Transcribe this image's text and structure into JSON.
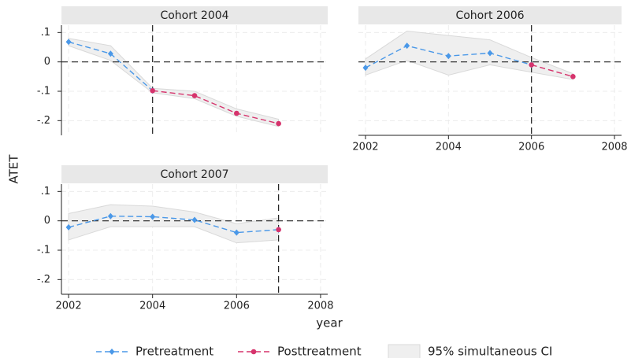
{
  "chart_data": [
    {
      "type": "line",
      "title": "Cohort 2004",
      "ylabel": "ATET",
      "x": [
        2002,
        2003,
        2004,
        2005,
        2006,
        2007
      ],
      "series": [
        {
          "name": "Pretreatment",
          "color": "#4a98e8",
          "marker": "diamond",
          "values": [
            0.068,
            0.028,
            -0.098,
            null,
            null,
            null
          ]
        },
        {
          "name": "Posttreatment",
          "color": "#d6336c",
          "marker": "circle",
          "values": [
            null,
            null,
            -0.098,
            -0.115,
            -0.175,
            -0.21
          ]
        }
      ],
      "band": {
        "name": "95% simultaneous CI",
        "color": "#efefef",
        "lower": [
          0.055,
          0.005,
          -0.105,
          -0.125,
          -0.185,
          -0.22
        ],
        "upper": [
          0.08,
          0.055,
          -0.09,
          -0.1,
          -0.16,
          -0.195
        ]
      },
      "hline": 0,
      "vline": 2004,
      "xlim": [
        2001.83,
        2008.17
      ],
      "ylim": [
        -0.25,
        0.125
      ],
      "xticks": [
        2002,
        2004,
        2006,
        2008
      ],
      "yticks": [
        {
          "value": 0.1,
          "label": ".1"
        },
        0,
        {
          "value": -0.1,
          "label": "-.1"
        },
        {
          "value": -0.2,
          "label": "-.2"
        }
      ],
      "x_tick_labels": false,
      "y_tick_labels": true,
      "grid": true
    },
    {
      "type": "line",
      "title": "Cohort 2006",
      "x": [
        2002,
        2003,
        2004,
        2005,
        2006,
        2007
      ],
      "series": [
        {
          "color": "#4a98e8",
          "marker": "diamond",
          "values": [
            -0.02,
            0.055,
            0.02,
            0.03,
            -0.01,
            null
          ]
        },
        {
          "color": "#d6336c",
          "marker": "circle",
          "values": [
            null,
            null,
            null,
            null,
            -0.01,
            -0.05
          ]
        }
      ],
      "band": {
        "color": "#efefef",
        "lower": [
          -0.045,
          0.005,
          -0.045,
          -0.01,
          -0.035,
          -0.06
        ],
        "upper": [
          0.01,
          0.105,
          0.09,
          0.075,
          0.015,
          -0.04
        ]
      },
      "hline": 0,
      "vline": 2006,
      "xlim": [
        2001.83,
        2008.17
      ],
      "ylim": [
        -0.25,
        0.125
      ],
      "xticks": [
        2002,
        2004,
        2006,
        2008
      ],
      "yticks": [
        0.1,
        0,
        -0.1,
        -0.2
      ],
      "x_tick_labels": true,
      "y_tick_labels": false,
      "grid": true
    },
    {
      "type": "line",
      "title": "Cohort 2007",
      "xlabel": "year",
      "x": [
        2002,
        2003,
        2004,
        2005,
        2006,
        2007
      ],
      "series": [
        {
          "color": "#4a98e8",
          "marker": "diamond",
          "values": [
            -0.022,
            0.016,
            0.014,
            0.003,
            -0.04,
            -0.03
          ]
        },
        {
          "color": "#d6336c",
          "marker": "circle",
          "values": [
            null,
            null,
            null,
            null,
            null,
            -0.03
          ]
        }
      ],
      "band": {
        "color": "#efefef",
        "lower": [
          -0.065,
          -0.02,
          -0.02,
          -0.02,
          -0.075,
          -0.065
        ],
        "upper": [
          0.025,
          0.055,
          0.05,
          0.03,
          -0.01,
          0.01
        ]
      },
      "hline": 0,
      "vline": 2007,
      "xlim": [
        2001.83,
        2008.17
      ],
      "ylim": [
        -0.25,
        0.125
      ],
      "xticks": [
        2002,
        2004,
        2006,
        2008
      ],
      "yticks": [
        {
          "value": 0.1,
          "label": ".1"
        },
        0,
        {
          "value": -0.1,
          "label": "-.1"
        },
        {
          "value": -0.2,
          "label": "-.2"
        }
      ],
      "x_tick_labels": true,
      "y_tick_labels": true,
      "grid": true
    }
  ]
}
